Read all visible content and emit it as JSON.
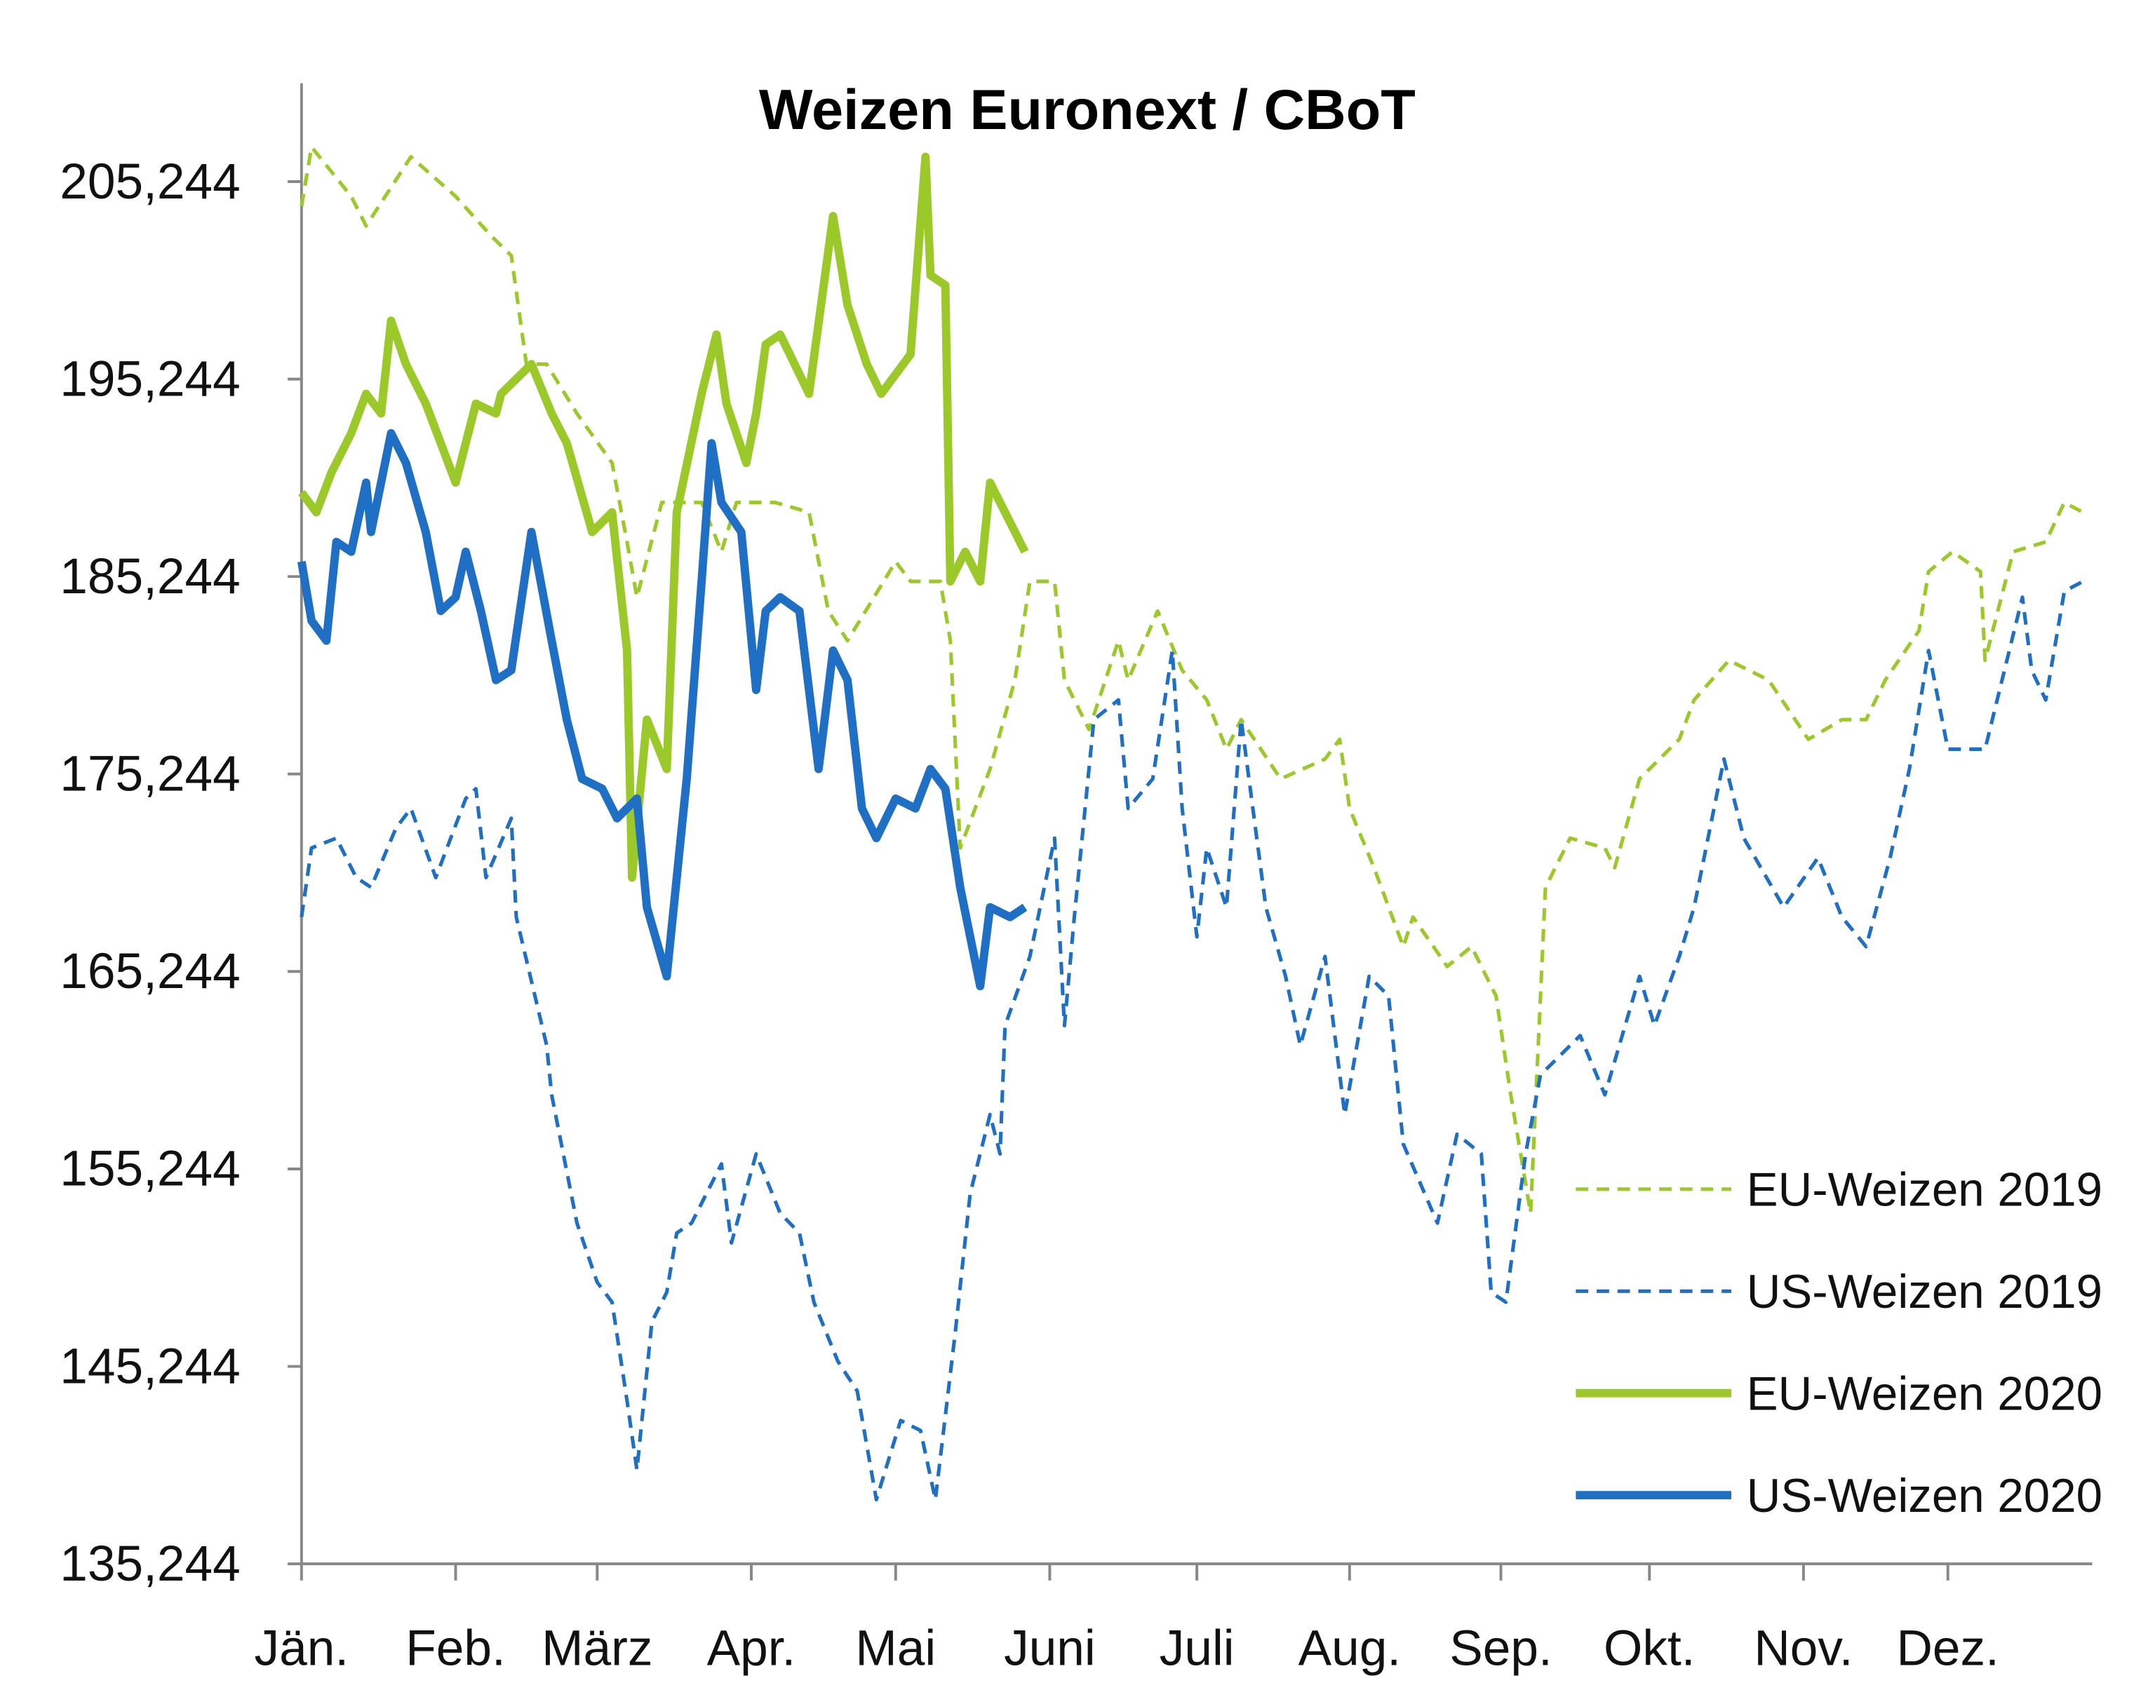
{
  "chart_data": {
    "type": "line",
    "title": "Weizen Euronext / CBoT",
    "xlabel": "",
    "ylabel": "",
    "ylim": [
      135.244,
      212
    ],
    "y_ticks": [
      135.244,
      145.244,
      155.244,
      165.244,
      175.244,
      185.244,
      195.244,
      205.244
    ],
    "y_tick_labels": [
      "135,244",
      "145,244",
      "155,244",
      "165,244",
      "175,244",
      "185,244",
      "195,244",
      "205,244"
    ],
    "x_tick_labels": [
      "Jän.",
      "Feb.",
      "März",
      "Apr.",
      "Mai",
      "Juni",
      "Juli",
      "Aug.",
      "Sep.",
      "Okt.",
      "Nov.",
      "Dez."
    ],
    "grid": false,
    "legend_position": "bottom-right",
    "series": [
      {
        "name": "EU-Weizen 2019",
        "color": "#9cc92a",
        "style": "dashed",
        "points": [
          [
            "01-01",
            204.0
          ],
          [
            "01-03",
            207.0
          ],
          [
            "01-11",
            204.5
          ],
          [
            "01-14",
            203.0
          ],
          [
            "01-23",
            206.5
          ],
          [
            "02-01",
            204.5
          ],
          [
            "02-08",
            202.5
          ],
          [
            "02-12",
            201.5
          ],
          [
            "02-15",
            196.0
          ],
          [
            "02-19",
            196.0
          ],
          [
            "02-25",
            193.5
          ],
          [
            "03-04",
            191.0
          ],
          [
            "03-07",
            187.0
          ],
          [
            "03-09",
            184.2
          ],
          [
            "03-14",
            189.0
          ],
          [
            "03-22",
            189.0
          ],
          [
            "03-26",
            186.5
          ],
          [
            "03-29",
            189.0
          ],
          [
            "04-06",
            189.0
          ],
          [
            "04-13",
            188.5
          ],
          [
            "04-17",
            183.5
          ],
          [
            "04-21",
            182.0
          ],
          [
            "04-26",
            184.0
          ],
          [
            "05-01",
            186.0
          ],
          [
            "05-04",
            185.0
          ],
          [
            "05-10",
            185.0
          ],
          [
            "05-12",
            182.0
          ],
          [
            "05-14",
            171.5
          ],
          [
            "05-20",
            175.5
          ],
          [
            "05-25",
            180.0
          ],
          [
            "05-28",
            185.0
          ],
          [
            "06-02",
            185.0
          ],
          [
            "06-04",
            180.0
          ],
          [
            "06-09",
            177.5
          ],
          [
            "06-15",
            182.0
          ],
          [
            "06-17",
            180.0
          ],
          [
            "06-23",
            183.5
          ],
          [
            "06-28",
            180.5
          ],
          [
            "07-03",
            179.0
          ],
          [
            "07-07",
            176.5
          ],
          [
            "07-10",
            178.0
          ],
          [
            "07-18",
            175.0
          ],
          [
            "07-27",
            176.0
          ],
          [
            "07-30",
            177.0
          ],
          [
            "08-01",
            173.5
          ],
          [
            "08-06",
            170.5
          ],
          [
            "08-12",
            166.5
          ],
          [
            "08-14",
            168.0
          ],
          [
            "08-21",
            165.5
          ],
          [
            "08-26",
            166.5
          ],
          [
            "08-31",
            164.0
          ],
          [
            "09-03",
            159.0
          ],
          [
            "09-07",
            153.0
          ],
          [
            "09-10",
            169.5
          ],
          [
            "09-15",
            172.0
          ],
          [
            "09-22",
            171.5
          ],
          [
            "09-24",
            170.5
          ],
          [
            "09-29",
            175.0
          ],
          [
            "10-07",
            177.0
          ],
          [
            "10-10",
            179.0
          ],
          [
            "10-17",
            181.0
          ],
          [
            "10-25",
            180.0
          ],
          [
            "11-02",
            177.0
          ],
          [
            "11-09",
            178.0
          ],
          [
            "11-14",
            178.0
          ],
          [
            "11-18",
            180.0
          ],
          [
            "11-25",
            182.5
          ],
          [
            "11-27",
            185.5
          ],
          [
            "12-02",
            186.5
          ],
          [
            "12-08",
            185.5
          ],
          [
            "12-09",
            181.0
          ],
          [
            "12-15",
            186.5
          ],
          [
            "12-22",
            187.0
          ],
          [
            "12-26",
            189.0
          ],
          [
            "12-30",
            188.5
          ]
        ]
      },
      {
        "name": "US-Weizen 2019",
        "color": "#1f6fc5",
        "style": "dashed",
        "points": [
          [
            "01-01",
            168.0
          ],
          [
            "01-03",
            171.5
          ],
          [
            "01-08",
            172.0
          ],
          [
            "01-12",
            170.0
          ],
          [
            "01-15",
            169.5
          ],
          [
            "01-20",
            172.5
          ],
          [
            "01-23",
            173.5
          ],
          [
            "01-28",
            170.0
          ],
          [
            "02-03",
            174.0
          ],
          [
            "02-05",
            174.5
          ],
          [
            "02-07",
            170.0
          ],
          [
            "02-12",
            173.0
          ],
          [
            "02-13",
            168.0
          ],
          [
            "02-19",
            161.5
          ],
          [
            "02-20",
            159.0
          ],
          [
            "02-25",
            152.5
          ],
          [
            "03-01",
            149.5
          ],
          [
            "03-04",
            148.5
          ],
          [
            "03-07",
            143.5
          ],
          [
            "03-09",
            140.0
          ],
          [
            "03-12",
            147.5
          ],
          [
            "03-15",
            149.0
          ],
          [
            "03-17",
            152.0
          ],
          [
            "03-20",
            152.5
          ],
          [
            "03-26",
            155.5
          ],
          [
            "03-28",
            151.5
          ],
          [
            "04-02",
            156.0
          ],
          [
            "04-07",
            153.0
          ],
          [
            "04-11",
            152.0
          ],
          [
            "04-14",
            148.5
          ],
          [
            "04-19",
            145.5
          ],
          [
            "04-23",
            144.0
          ],
          [
            "04-27",
            138.5
          ],
          [
            "05-02",
            142.5
          ],
          [
            "05-06",
            142.0
          ],
          [
            "05-09",
            138.5
          ],
          [
            "05-13",
            147.0
          ],
          [
            "05-16",
            154.0
          ],
          [
            "05-20",
            158.0
          ],
          [
            "05-22",
            156.0
          ],
          [
            "05-23",
            162.5
          ],
          [
            "05-28",
            166.0
          ],
          [
            "06-02",
            172.0
          ],
          [
            "06-04",
            162.5
          ],
          [
            "06-06",
            168.0
          ],
          [
            "06-10",
            178.0
          ],
          [
            "06-15",
            179.0
          ],
          [
            "06-17",
            173.5
          ],
          [
            "06-22",
            175.0
          ],
          [
            "06-26",
            181.5
          ],
          [
            "06-28",
            173.5
          ],
          [
            "07-01",
            167.0
          ],
          [
            "07-03",
            171.5
          ],
          [
            "07-07",
            168.5
          ],
          [
            "07-10",
            178.0
          ],
          [
            "07-15",
            168.5
          ],
          [
            "07-19",
            165.0
          ],
          [
            "07-22",
            161.5
          ],
          [
            "07-27",
            166.0
          ],
          [
            "07-31",
            158.0
          ],
          [
            "08-05",
            165.0
          ],
          [
            "08-09",
            164.0
          ],
          [
            "08-12",
            156.5
          ],
          [
            "08-19",
            152.5
          ],
          [
            "08-23",
            157.0
          ],
          [
            "08-28",
            156.0
          ],
          [
            "08-30",
            149.0
          ],
          [
            "09-02",
            148.5
          ],
          [
            "09-06",
            156.0
          ],
          [
            "09-09",
            160.0
          ],
          [
            "09-17",
            162.0
          ],
          [
            "09-22",
            159.0
          ],
          [
            "09-29",
            165.0
          ],
          [
            "10-02",
            162.5
          ],
          [
            "10-07",
            166.0
          ],
          [
            "10-10",
            168.5
          ],
          [
            "10-16",
            176.0
          ],
          [
            "10-20",
            172.0
          ],
          [
            "10-28",
            168.5
          ],
          [
            "11-04",
            171.0
          ],
          [
            "11-09",
            168.0
          ],
          [
            "11-14",
            166.5
          ],
          [
            "11-19",
            171.0
          ],
          [
            "11-23",
            175.5
          ],
          [
            "11-27",
            181.5
          ],
          [
            "12-01",
            176.5
          ],
          [
            "12-09",
            176.5
          ],
          [
            "12-17",
            184.2
          ],
          [
            "12-19",
            180.5
          ],
          [
            "12-22",
            179.0
          ],
          [
            "12-26",
            184.5
          ],
          [
            "12-30",
            185.0
          ]
        ]
      },
      {
        "name": "EU-Weizen 2020",
        "color": "#9cc92a",
        "style": "solid",
        "points": [
          [
            "01-01",
            189.5
          ],
          [
            "01-04",
            188.5
          ],
          [
            "01-07",
            190.5
          ],
          [
            "01-11",
            192.5
          ],
          [
            "01-14",
            194.5
          ],
          [
            "01-17",
            193.5
          ],
          [
            "01-19",
            198.2
          ],
          [
            "01-22",
            196.0
          ],
          [
            "01-26",
            194.0
          ],
          [
            "01-29",
            192.0
          ],
          [
            "02-01",
            190.0
          ],
          [
            "02-05",
            194.0
          ],
          [
            "02-09",
            193.5
          ],
          [
            "02-10",
            194.5
          ],
          [
            "02-16",
            196.0
          ],
          [
            "02-20",
            193.5
          ],
          [
            "02-23",
            192.0
          ],
          [
            "02-28",
            187.5
          ],
          [
            "03-04",
            188.5
          ],
          [
            "03-07",
            181.5
          ],
          [
            "03-08",
            170.0
          ],
          [
            "03-11",
            178.0
          ],
          [
            "03-15",
            175.5
          ],
          [
            "03-17",
            188.5
          ],
          [
            "03-22",
            194.5
          ],
          [
            "03-25",
            197.5
          ],
          [
            "03-27",
            194.0
          ],
          [
            "03-31",
            191.0
          ],
          [
            "04-02",
            193.5
          ],
          [
            "04-04",
            197.0
          ],
          [
            "04-07",
            197.5
          ],
          [
            "04-13",
            194.5
          ],
          [
            "04-18",
            203.5
          ],
          [
            "04-21",
            199.0
          ],
          [
            "04-25",
            196.0
          ],
          [
            "04-28",
            194.5
          ],
          [
            "05-04",
            196.5
          ],
          [
            "05-07",
            206.5
          ],
          [
            "05-08",
            200.5
          ],
          [
            "05-11",
            200.0
          ],
          [
            "05-12",
            185.0
          ],
          [
            "05-15",
            186.5
          ],
          [
            "05-18",
            185.0
          ],
          [
            "05-20",
            190.0
          ],
          [
            "05-23",
            188.5
          ],
          [
            "05-27",
            186.5
          ]
        ]
      },
      {
        "name": "US-Weizen 2020",
        "color": "#1f6fc5",
        "style": "solid",
        "points": [
          [
            "01-01",
            186.0
          ],
          [
            "01-03",
            183.0
          ],
          [
            "01-06",
            182.0
          ],
          [
            "01-08",
            187.0
          ],
          [
            "01-11",
            186.5
          ],
          [
            "01-14",
            190.0
          ],
          [
            "01-15",
            187.5
          ],
          [
            "01-19",
            192.5
          ],
          [
            "01-22",
            191.0
          ],
          [
            "01-26",
            187.5
          ],
          [
            "01-29",
            183.5
          ],
          [
            "02-01",
            184.2
          ],
          [
            "02-03",
            186.5
          ],
          [
            "02-06",
            183.5
          ],
          [
            "02-09",
            180.0
          ],
          [
            "02-12",
            180.5
          ],
          [
            "02-16",
            187.5
          ],
          [
            "02-20",
            182.0
          ],
          [
            "02-23",
            178.0
          ],
          [
            "02-26",
            175.0
          ],
          [
            "03-02",
            174.5
          ],
          [
            "03-05",
            173.0
          ],
          [
            "03-09",
            174.0
          ],
          [
            "03-11",
            168.5
          ],
          [
            "03-15",
            165.0
          ],
          [
            "03-19",
            175.0
          ],
          [
            "03-22",
            185.0
          ],
          [
            "03-24",
            192.0
          ],
          [
            "03-26",
            189.0
          ],
          [
            "03-30",
            187.5
          ],
          [
            "04-02",
            179.5
          ],
          [
            "04-04",
            183.5
          ],
          [
            "04-07",
            184.2
          ],
          [
            "04-11",
            183.5
          ],
          [
            "04-15",
            175.5
          ],
          [
            "04-18",
            181.5
          ],
          [
            "04-21",
            180.0
          ],
          [
            "04-24",
            173.5
          ],
          [
            "04-27",
            172.0
          ],
          [
            "05-01",
            174.0
          ],
          [
            "05-05",
            173.5
          ],
          [
            "05-08",
            175.5
          ],
          [
            "05-11",
            174.5
          ],
          [
            "05-14",
            169.5
          ],
          [
            "05-18",
            164.5
          ],
          [
            "05-20",
            168.5
          ],
          [
            "05-24",
            168.0
          ],
          [
            "05-27",
            168.5
          ]
        ]
      }
    ]
  }
}
